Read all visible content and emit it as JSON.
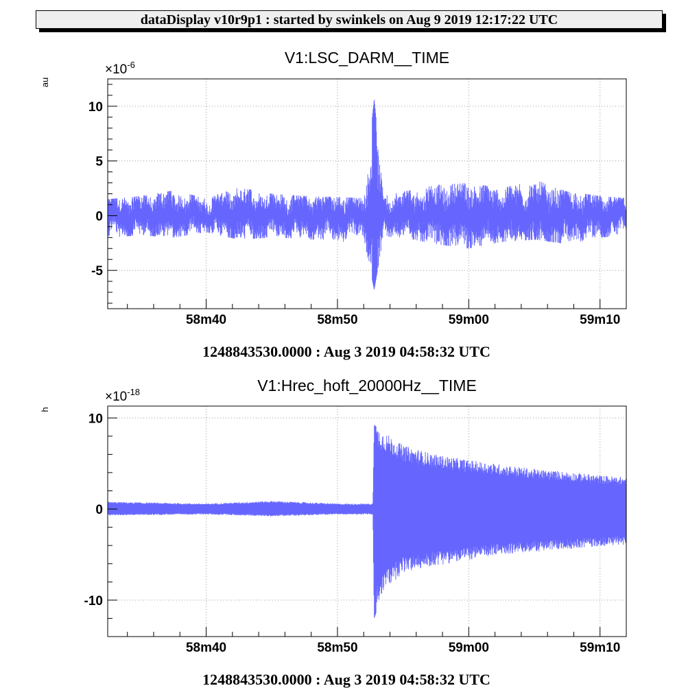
{
  "banner": "dataDisplay v10r9p1 : started by swinkels on Aug  9 2019 12:17:22 UTC",
  "colors": {
    "trace": "#6666ff",
    "grid": "#9a9a9a",
    "axis": "#000000"
  },
  "chart_data": [
    {
      "type": "line",
      "title": "V1:LSC_DARM__TIME",
      "ylabel": "au",
      "y_multiplier": "×10",
      "y_exponent": "-6",
      "yticks": [
        10,
        5,
        0,
        -5
      ],
      "ytick_labels": [
        "10",
        "5",
        "0",
        "-5"
      ],
      "ylim": [
        -8.5,
        12.5
      ],
      "xlim": [
        32.5,
        72.0
      ],
      "xticks": [
        40,
        50,
        60,
        70
      ],
      "xtick_labels": [
        "58m40",
        "58m50",
        "59m00",
        "59m10"
      ],
      "xlabel": "1248843530.0000 : Aug  3 2019 04:58:32 UTC",
      "grid": true,
      "series": [
        {
          "x": [
            32.5,
            35,
            37.5,
            40,
            42.5,
            45,
            47.5,
            50,
            52.0,
            52.8,
            53.5,
            55,
            57.5,
            60,
            62.5,
            65,
            67.5,
            70,
            72
          ],
          "y_min": [
            -2.0,
            -1.8,
            -2.0,
            -1.5,
            -2.2,
            -2.0,
            -2.1,
            -2.5,
            -2.0,
            -6.8,
            -1.9,
            -2.0,
            -2.6,
            -3.0,
            -2.4,
            -2.2,
            -2.6,
            -2.0,
            -1.8
          ],
          "y_max": [
            1.5,
            1.8,
            2.3,
            1.6,
            2.6,
            2.0,
            1.8,
            1.7,
            1.6,
            10.7,
            1.8,
            2.2,
            2.8,
            3.0,
            2.5,
            3.3,
            2.2,
            1.8,
            1.6
          ]
        }
      ]
    },
    {
      "type": "line",
      "title": "V1:Hrec_hoft_20000Hz__TIME",
      "ylabel": "h",
      "y_multiplier": "×10",
      "y_exponent": "-18",
      "yticks": [
        10,
        0,
        -10
      ],
      "ytick_labels": [
        "10",
        "0",
        "-10"
      ],
      "ylim": [
        -14.0,
        11.3
      ],
      "xlim": [
        32.5,
        72.0
      ],
      "xticks": [
        40,
        50,
        60,
        70
      ],
      "xtick_labels": [
        "58m40",
        "58m50",
        "59m00",
        "59m10"
      ],
      "xlabel": "1248843530.0000 : Aug  3 2019 04:58:32 UTC",
      "grid": true,
      "series": [
        {
          "x": [
            32.5,
            40,
            45,
            50,
            52.7,
            52.8,
            53.5,
            55,
            57.5,
            60,
            62.5,
            65,
            67.5,
            70,
            72
          ],
          "y_min": [
            -0.7,
            -0.6,
            -0.8,
            -0.6,
            -0.6,
            -12.0,
            -9.0,
            -7.0,
            -6.2,
            -5.6,
            -5.0,
            -4.7,
            -4.4,
            -4.1,
            -3.9
          ],
          "y_max": [
            0.8,
            0.6,
            0.9,
            0.6,
            0.6,
            9.2,
            8.5,
            7.0,
            6.0,
            5.4,
            4.9,
            4.4,
            4.1,
            3.7,
            3.5
          ]
        }
      ]
    }
  ]
}
